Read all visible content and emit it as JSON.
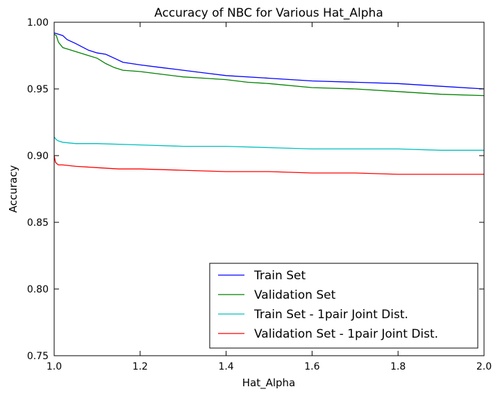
{
  "chart_data": {
    "type": "line",
    "title": "Accuracy of NBC for Various Hat_Alpha",
    "xlabel": "Hat_Alpha",
    "ylabel": "Accuracy",
    "xlim": [
      1.0,
      2.0
    ],
    "ylim": [
      0.75,
      1.0
    ],
    "xticks": [
      "1.0",
      "1.2",
      "1.4",
      "1.6",
      "1.8",
      "2.0"
    ],
    "yticks": [
      "0.75",
      "0.80",
      "0.85",
      "0.90",
      "0.95",
      "1.00"
    ],
    "grid": false,
    "legend_position": "lower-right",
    "series": [
      {
        "name": "Train Set",
        "color": "#0000ff",
        "x": [
          1.0,
          1.01,
          1.02,
          1.03,
          1.05,
          1.08,
          1.1,
          1.12,
          1.14,
          1.16,
          1.2,
          1.25,
          1.3,
          1.35,
          1.4,
          1.5,
          1.6,
          1.7,
          1.8,
          1.9,
          2.0
        ],
        "y": [
          0.992,
          0.991,
          0.99,
          0.987,
          0.984,
          0.979,
          0.977,
          0.976,
          0.973,
          0.97,
          0.968,
          0.966,
          0.964,
          0.962,
          0.96,
          0.958,
          0.956,
          0.955,
          0.954,
          0.952,
          0.95
        ]
      },
      {
        "name": "Validation Set",
        "color": "#008000",
        "x": [
          1.0,
          1.005,
          1.01,
          1.02,
          1.03,
          1.05,
          1.08,
          1.1,
          1.12,
          1.14,
          1.16,
          1.2,
          1.25,
          1.3,
          1.35,
          1.4,
          1.45,
          1.5,
          1.6,
          1.7,
          1.8,
          1.9,
          2.0
        ],
        "y": [
          0.991,
          0.99,
          0.985,
          0.981,
          0.98,
          0.978,
          0.975,
          0.973,
          0.969,
          0.966,
          0.964,
          0.963,
          0.961,
          0.959,
          0.958,
          0.957,
          0.955,
          0.954,
          0.951,
          0.95,
          0.948,
          0.946,
          0.945
        ]
      },
      {
        "name": "Train Set - 1pair Joint Dist.",
        "color": "#00bfbf",
        "x": [
          1.0,
          1.005,
          1.01,
          1.02,
          1.05,
          1.1,
          1.2,
          1.3,
          1.4,
          1.5,
          1.6,
          1.7,
          1.8,
          1.9,
          2.0
        ],
        "y": [
          0.914,
          0.912,
          0.911,
          0.91,
          0.909,
          0.909,
          0.908,
          0.907,
          0.907,
          0.906,
          0.905,
          0.905,
          0.905,
          0.904,
          0.904
        ]
      },
      {
        "name": "Validation Set - 1pair Joint Dist.",
        "color": "#ff0000",
        "x": [
          1.0,
          1.003,
          1.006,
          1.01,
          1.02,
          1.05,
          1.1,
          1.15,
          1.2,
          1.3,
          1.4,
          1.5,
          1.6,
          1.7,
          1.8,
          1.9,
          2.0
        ],
        "y": [
          0.9,
          0.895,
          0.894,
          0.893,
          0.893,
          0.892,
          0.891,
          0.89,
          0.89,
          0.889,
          0.888,
          0.888,
          0.887,
          0.887,
          0.886,
          0.886,
          0.886
        ]
      }
    ]
  }
}
